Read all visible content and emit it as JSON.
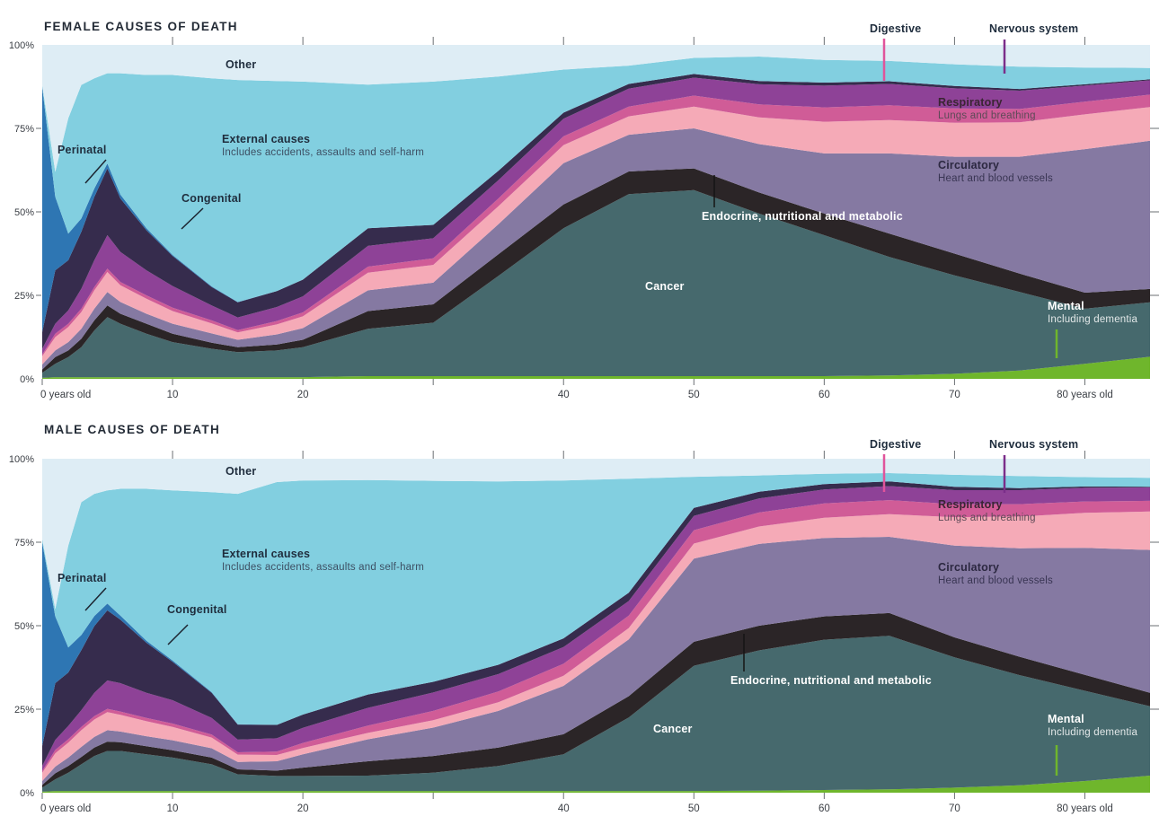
{
  "colors": {
    "mental": "#6fb62c",
    "cancer": "#46696d",
    "endocrine": "#2b2527",
    "circulatory": "#8579a2",
    "respiratory": "#f5aab7",
    "digestive": "#d05c97",
    "nervous": "#8e4297",
    "congenital": "#362c4d",
    "perinatal": "#2e76b3",
    "external": "#82cfe0",
    "other": "#deedf5"
  },
  "annotations": {
    "other": "Other",
    "external": {
      "title": "External causes",
      "sub": "Includes accidents, assaults and self-harm"
    },
    "perinatal": "Perinatal",
    "congenital": "Congenital",
    "digestive": "Digestive",
    "nervous": "Nervous system",
    "respiratory": {
      "title": "Respiratory",
      "sub": "Lungs and breathing"
    },
    "circulatory": {
      "title": "Circulatory",
      "sub": "Heart and blood vessels"
    },
    "endocrine": "Endocrine, nutritional and metabolic",
    "cancer": "Cancer",
    "mental": {
      "title": "Mental",
      "sub": "Including dementia"
    }
  },
  "axis": {
    "y_ticks": [
      {
        "pct": 0,
        "label": "0%"
      },
      {
        "pct": 25,
        "label": "25%"
      },
      {
        "pct": 50,
        "label": "50%"
      },
      {
        "pct": 75,
        "label": "75%"
      },
      {
        "pct": 100,
        "label": "100%"
      }
    ],
    "x_ticks": [
      {
        "age": 0,
        "label": "0 years old"
      },
      {
        "age": 10,
        "label": "10"
      },
      {
        "age": 20,
        "label": "20"
      },
      {
        "age": 30,
        "label": ""
      },
      {
        "age": 40,
        "label": "40"
      },
      {
        "age": 50,
        "label": "50"
      },
      {
        "age": 60,
        "label": "60"
      },
      {
        "age": 70,
        "label": "70"
      },
      {
        "age": 80,
        "label": "80 years old"
      }
    ]
  },
  "chart_data": [
    {
      "id": "female",
      "title": "FEMALE CAUSES OF DEATH",
      "type": "area",
      "stacked": true,
      "unit": "% of deaths at each age",
      "xlabel": "age (years)",
      "ylim": [
        0,
        100
      ],
      "xlim": [
        0,
        85
      ],
      "ages": [
        0,
        1,
        2,
        3,
        4,
        5,
        6,
        8,
        10,
        13,
        15,
        18,
        20,
        25,
        30,
        35,
        40,
        45,
        50,
        55,
        60,
        65,
        70,
        75,
        80,
        85
      ],
      "series": [
        {
          "key": "mental",
          "name": "Mental (including dementia)",
          "values": [
            0.3,
            0.5,
            0.5,
            0.5,
            0.5,
            0.5,
            0.5,
            0.5,
            0.5,
            0.5,
            0.5,
            0.5,
            0.5,
            0.8,
            0.8,
            0.8,
            0.8,
            0.8,
            0.8,
            0.8,
            0.8,
            1,
            1.5,
            2.5,
            4.5,
            6.6
          ]
        },
        {
          "key": "cancer",
          "name": "Cancer",
          "values": [
            1.5,
            4,
            6,
            9,
            14,
            18,
            16,
            13,
            10.5,
            8.5,
            7.5,
            8,
            9,
            14.2,
            16,
            30,
            44.3,
            54.5,
            55.7,
            48.7,
            42.2,
            35.5,
            29.5,
            23.5,
            16.5,
            16.3
          ]
        },
        {
          "key": "endocrine",
          "name": "Endocrine, nutritional and metabolic",
          "values": [
            1,
            2,
            2,
            2.5,
            3,
            3.5,
            3,
            3,
            2.5,
            1.8,
            1.5,
            1.8,
            2.2,
            5.3,
            5.5,
            6.5,
            7.1,
            6.8,
            6.5,
            6.3,
            6.5,
            7,
            6.5,
            5.5,
            4.8,
            4
          ]
        },
        {
          "key": "circulatory",
          "name": "Circulatory (heart and blood vessels)",
          "values": [
            1.5,
            2,
            2.5,
            3,
            3.5,
            4,
            3.5,
            3,
            3,
            2.8,
            2.2,
            3,
            3.5,
            6.2,
            6.5,
            9,
            12.4,
            11,
            12,
            14.5,
            18,
            24,
            29,
            35,
            43,
            44.4
          ]
        },
        {
          "key": "respiratory",
          "name": "Respiratory (lungs and breathing)",
          "values": [
            2.5,
            4,
            4.5,
            5,
            5.5,
            6,
            5,
            4.5,
            3.8,
            3,
            2.2,
            3,
            3.5,
            5.3,
            5.3,
            5.4,
            5.4,
            5.5,
            6.5,
            8,
            9.5,
            10,
            10.2,
            10.3,
            10.4,
            10.1
          ]
        },
        {
          "key": "digestive",
          "name": "Digestive",
          "values": [
            0.5,
            1,
            1,
            1,
            1,
            1,
            1,
            1,
            1,
            0.9,
            0.7,
            1,
            1.2,
            1.8,
            2,
            2.3,
            2.6,
            2.9,
            3.3,
            3.9,
            4.3,
            4.4,
            4.3,
            4,
            3.8,
            3.7
          ]
        },
        {
          "key": "nervous",
          "name": "Nervous system",
          "values": [
            1.7,
            3,
            4,
            6,
            8,
            10,
            9,
            7.5,
            6.5,
            4.5,
            3.8,
            4.2,
            4.8,
            6.2,
            6,
            5.5,
            5.3,
            5.4,
            5.4,
            6,
            6.5,
            6.4,
            6,
            5.5,
            4.8,
            4.3
          ]
        },
        {
          "key": "congenital",
          "name": "Congenital",
          "values": [
            5,
            16,
            15,
            17,
            19,
            20,
            16,
            12,
            9,
            5.5,
            4.5,
            4.8,
            5,
            5.3,
            4,
            2.8,
            1.8,
            1.4,
            1.1,
            1,
            0.9,
            0.8,
            0.7,
            0.5,
            0.4,
            0.3
          ]
        },
        {
          "key": "perinatal",
          "name": "Perinatal",
          "values": [
            73.5,
            22,
            8,
            4,
            2.5,
            1.5,
            1.2,
            0.6,
            0.3,
            0.2,
            0.1,
            0,
            0,
            0,
            0,
            0,
            0,
            0,
            0,
            0,
            0,
            0,
            0,
            0,
            0,
            0
          ]
        },
        {
          "key": "external",
          "name": "External causes (accidents, assaults and self-harm)",
          "values": [
            0.5,
            7.5,
            34.5,
            40,
            33,
            27,
            36.3,
            45.9,
            53.9,
            62.3,
            66.5,
            62.9,
            59.3,
            43,
            42.9,
            28.2,
            12.9,
            5.5,
            4.8,
            7.3,
            6.8,
            6.1,
            6.5,
            6.7,
            5,
            3.4
          ]
        },
        {
          "key": "other",
          "name": "Other",
          "values": [
            12,
            38,
            22,
            12,
            10,
            8.5,
            8.5,
            9,
            9,
            10,
            10.5,
            10.8,
            11,
            11.9,
            11,
            9.5,
            7.4,
            6.2,
            3.9,
            3.5,
            4.5,
            4.8,
            5.8,
            6.5,
            6.8,
            6.9
          ]
        }
      ]
    },
    {
      "id": "male",
      "title": "MALE CAUSES OF DEATH",
      "type": "area",
      "stacked": true,
      "unit": "% of deaths at each age",
      "xlabel": "age (years)",
      "ylim": [
        0,
        100
      ],
      "xlim": [
        0,
        85
      ],
      "ages": [
        0,
        1,
        2,
        3,
        4,
        5,
        6,
        8,
        10,
        13,
        15,
        18,
        20,
        25,
        30,
        35,
        40,
        45,
        50,
        55,
        60,
        65,
        70,
        75,
        80,
        85
      ],
      "series": [
        {
          "key": "mental",
          "name": "Mental (including dementia)",
          "values": [
            0.3,
            0.5,
            0.5,
            0.5,
            0.5,
            0.5,
            0.5,
            0.5,
            0.5,
            0.5,
            0.5,
            0.5,
            0.5,
            0.5,
            0.5,
            0.5,
            0.5,
            0.5,
            0.5,
            0.6,
            0.8,
            1,
            1.5,
            2.2,
            3.5,
            5.1
          ]
        },
        {
          "key": "cancer",
          "name": "Cancer",
          "values": [
            1.2,
            3.5,
            5.5,
            8,
            10.5,
            12,
            12,
            11,
            10,
            8,
            5,
            4.5,
            4.5,
            4.6,
            5.5,
            7.5,
            11,
            22,
            37.5,
            42,
            45,
            46,
            39,
            33,
            27,
            20.8
          ]
        },
        {
          "key": "endocrine",
          "name": "Endocrine, nutritional and metabolic",
          "values": [
            0.8,
            1.8,
            2,
            2.2,
            2.5,
            2.8,
            2.6,
            2.4,
            2.2,
            2,
            1.5,
            1.6,
            2.5,
            4.3,
            5,
            5.5,
            6,
            6.4,
            7.2,
            7.4,
            7,
            6.8,
            6,
            5.5,
            4.8,
            4
          ]
        },
        {
          "key": "circulatory",
          "name": "Circulatory (heart and blood vessels)",
          "values": [
            1.2,
            2,
            2.5,
            3,
            3.2,
            3.4,
            3.2,
            3,
            3,
            2.8,
            2.2,
            2.8,
            4,
            6.6,
            8.5,
            11,
            14.5,
            17,
            24.9,
            24.5,
            23.5,
            22.8,
            27.5,
            32.5,
            38,
            42.8
          ]
        },
        {
          "key": "respiratory",
          "name": "Respiratory (lungs and breathing)",
          "values": [
            2.5,
            4,
            4.5,
            5,
            5.2,
            5.4,
            5,
            4.5,
            4,
            3.2,
            2.2,
            1.9,
            1.9,
            1.9,
            2.2,
            2.6,
            3,
            3.4,
            4.5,
            5.2,
            6,
            6.8,
            8.5,
            9.5,
            10.5,
            11.5
          ]
        },
        {
          "key": "digestive",
          "name": "Digestive",
          "values": [
            0.5,
            1,
            1,
            1,
            1,
            1,
            1,
            1,
            1,
            0.9,
            0.7,
            1,
            1.5,
            2.2,
            2.8,
            3.2,
            3.6,
            3.7,
            4,
            4.2,
            4.3,
            4.2,
            3.9,
            3.7,
            3.4,
            3.2
          ]
        },
        {
          "key": "nervous",
          "name": "Nervous system",
          "values": [
            1.5,
            3,
            4,
            5,
            7,
            8.5,
            8.5,
            7.5,
            7,
            5,
            3.8,
            4,
            4.5,
            5.3,
            5.5,
            5.2,
            5,
            4.4,
            4.3,
            4.2,
            4.2,
            4.2,
            4.2,
            4.2,
            4.1,
            4
          ]
        },
        {
          "key": "congenital",
          "name": "Congenital",
          "values": [
            6,
            17,
            16,
            18,
            20,
            21,
            19,
            15,
            11.5,
            7.5,
            4.5,
            4,
            4,
            4,
            3.2,
            2.8,
            2.6,
            2.5,
            2.4,
            2,
            1.6,
            1.4,
            1,
            0.6,
            0.4,
            0.2
          ]
        },
        {
          "key": "perinatal",
          "name": "Perinatal",
          "values": [
            61,
            20,
            7.5,
            4.5,
            3,
            2,
            1.2,
            0.6,
            0.4,
            0.2,
            0.1,
            0,
            0,
            0,
            0,
            0,
            0,
            0,
            0,
            0,
            0,
            0,
            0,
            0,
            0,
            0
          ]
        },
        {
          "key": "external",
          "name": "External causes (accidents, assaults and self-harm)",
          "values": [
            1,
            2.2,
            30.5,
            39.8,
            36.6,
            33.9,
            38,
            45.5,
            50.9,
            59.9,
            69,
            72.7,
            70.1,
            64.2,
            60.2,
            54.9,
            47.3,
            34.1,
            9.3,
            4.9,
            3.1,
            2.5,
            3.6,
            3.6,
            2.8,
            2.7
          ]
        },
        {
          "key": "other",
          "name": "Other",
          "values": [
            24,
            45,
            26,
            13,
            10.5,
            9.5,
            9,
            9,
            9.5,
            10,
            10.5,
            7,
            6.5,
            6.4,
            6.6,
            6.8,
            6.5,
            6,
            5.4,
            5,
            4.5,
            4.3,
            4.8,
            5.2,
            5.5,
            5.7
          ]
        }
      ]
    }
  ]
}
